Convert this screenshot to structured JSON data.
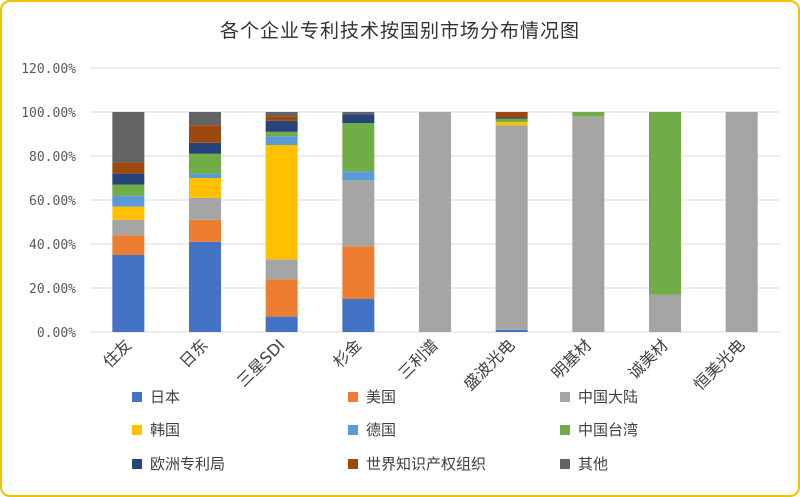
{
  "chart_data": {
    "type": "bar",
    "stacked": true,
    "title": "各个企业专利技术按国别市场分布情况图",
    "categories": [
      "住友",
      "日东",
      "三星SDI",
      "杉金",
      "三利谱",
      "盛波光电",
      "明基材",
      "诚美材",
      "恒美光电"
    ],
    "y_ticks": [
      "0.00%",
      "20.00%",
      "40.00%",
      "60.00%",
      "80.00%",
      "100.00%",
      "120.00%"
    ],
    "ylim": [
      0,
      120
    ],
    "grid": true,
    "legend_position": "bottom",
    "series": [
      {
        "name": "日本",
        "color": "#4472c4",
        "values": [
          35,
          41,
          7,
          15,
          0,
          1,
          0,
          0,
          0
        ]
      },
      {
        "name": "美国",
        "color": "#ed7d31",
        "values": [
          9,
          10,
          17,
          24,
          0,
          0,
          0,
          0,
          0
        ]
      },
      {
        "name": "中国大陆",
        "color": "#a5a5a5",
        "values": [
          7,
          10,
          9,
          30,
          100,
          93,
          98,
          17,
          100
        ]
      },
      {
        "name": "韩国",
        "color": "#ffc000",
        "values": [
          6,
          9,
          52,
          0,
          0,
          1.5,
          0,
          0,
          0
        ]
      },
      {
        "name": "德国",
        "color": "#5b9bd5",
        "values": [
          5,
          2,
          4,
          4,
          0,
          0,
          0,
          0,
          0
        ]
      },
      {
        "name": "中国台湾",
        "color": "#70ad47",
        "values": [
          5,
          9,
          2,
          22,
          0,
          1.5,
          2,
          83,
          0
        ]
      },
      {
        "name": "欧洲专利局",
        "color": "#264478",
        "values": [
          5,
          5,
          5,
          4,
          0,
          0.5,
          0,
          0,
          0
        ]
      },
      {
        "name": "世界知识产权组织",
        "color": "#9e480e",
        "values": [
          5,
          8,
          2,
          0,
          0,
          2.5,
          0,
          0,
          0
        ]
      },
      {
        "name": "其他",
        "color": "#636363",
        "values": [
          23,
          6,
          2,
          1,
          0,
          0,
          0,
          0,
          0
        ]
      }
    ]
  }
}
